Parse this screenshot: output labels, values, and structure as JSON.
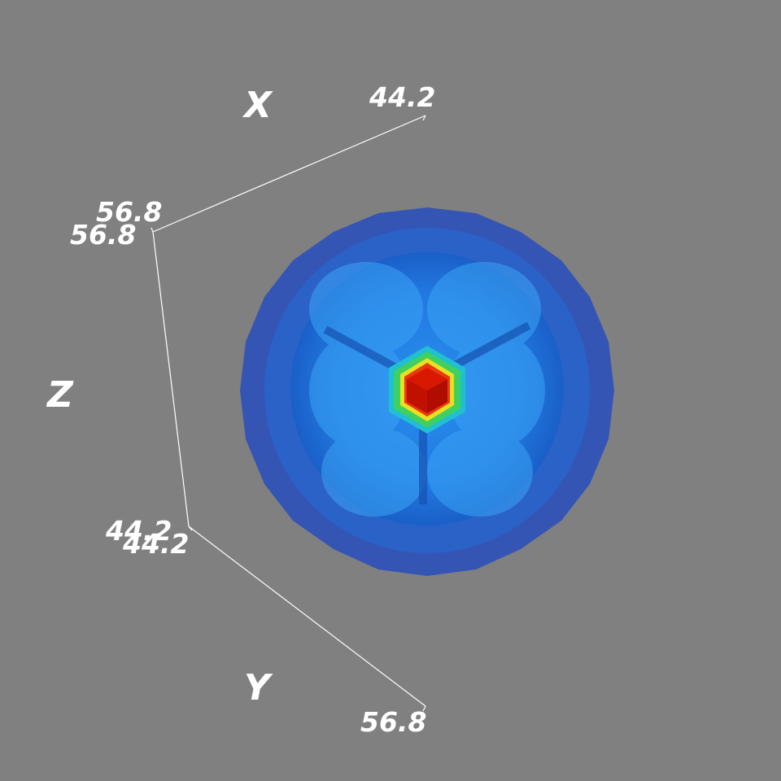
{
  "axes": {
    "x": {
      "title": "X",
      "min_label": "56.8",
      "max_label": "44.2"
    },
    "y": {
      "title": "Y",
      "min_label": "44.2",
      "max_label": "56.8"
    },
    "z": {
      "title": "Z",
      "top_label": "56.8",
      "bottom_label": "44.2"
    }
  },
  "colors": {
    "background": "#808080",
    "outer_shell": "#3555b5",
    "inner_shell": "#1e6fd6",
    "core_outer": "#20c0d0",
    "core_mid": "#e8e020",
    "core_center": "#d81800"
  }
}
